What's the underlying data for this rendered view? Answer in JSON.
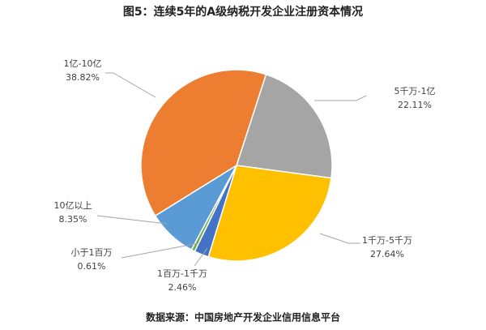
{
  "chart_data": {
    "type": "pie",
    "title": "图5：连续5年的A级纳税开发企业注册资本情况",
    "source": "数据来源：中国房地产开发企业信用信息平台",
    "categories": [
      "5千万-1亿",
      "1千万-5千万",
      "1百万-1千万",
      "小于1百万",
      "10亿以上",
      "1亿-10亿"
    ],
    "values": [
      22.11,
      27.64,
      2.46,
      0.61,
      8.35,
      38.82
    ],
    "value_labels": [
      "22.11%",
      "27.64%",
      "2.46%",
      "0.61%",
      "8.35%",
      "38.82%"
    ],
    "colors": [
      "#a5a5a5",
      "#ffc000",
      "#4472c4",
      "#70ad47",
      "#5b9bd5",
      "#ed7d31"
    ]
  }
}
